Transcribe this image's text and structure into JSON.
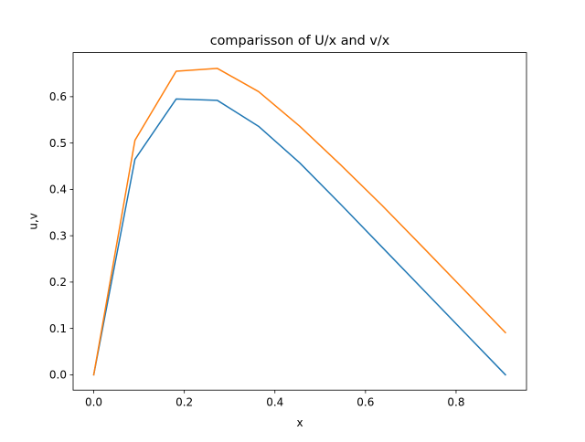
{
  "chart_data": {
    "type": "line",
    "title": "comparisson of U/x and v/x",
    "xlabel": "x",
    "ylabel": "u,v",
    "xlim": [
      -0.0455,
      0.9555
    ],
    "ylim": [
      -0.0331,
      0.6951
    ],
    "xticks": [
      0.0,
      0.2,
      0.4,
      0.6,
      0.8
    ],
    "xtick_labels": [
      "0.0",
      "0.2",
      "0.4",
      "0.6",
      "0.8"
    ],
    "yticks": [
      0.0,
      0.1,
      0.2,
      0.3,
      0.4,
      0.5,
      0.6
    ],
    "ytick_labels": [
      "0.0",
      "0.1",
      "0.2",
      "0.3",
      "0.4",
      "0.5",
      "0.6"
    ],
    "grid": false,
    "x": [
      0.0,
      0.091,
      0.182,
      0.273,
      0.364,
      0.455,
      0.545,
      0.636,
      0.727,
      0.818,
      0.909
    ],
    "series": [
      {
        "color": "#1f77b4",
        "values": [
          0.0,
          0.465,
          0.595,
          0.592,
          0.536,
          0.457,
          0.368,
          0.276,
          0.184,
          0.092,
          0.0
        ]
      },
      {
        "color": "#ff7f0e",
        "values": [
          0.0,
          0.506,
          0.655,
          0.661,
          0.611,
          0.536,
          0.453,
          0.366,
          0.275,
          0.183,
          0.091
        ]
      }
    ]
  }
}
